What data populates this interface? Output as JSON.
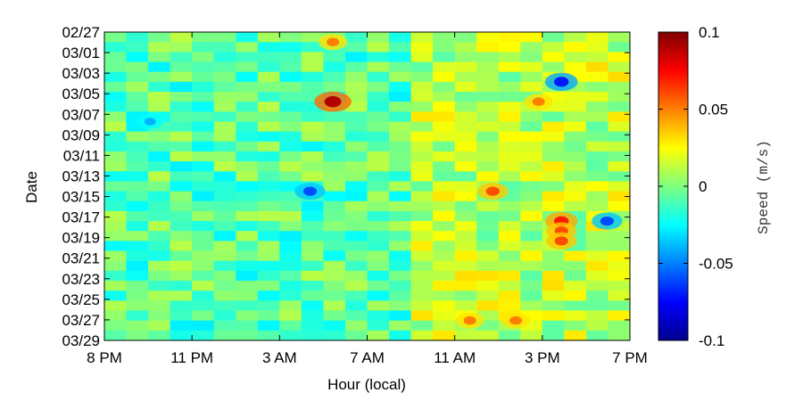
{
  "chart_data": {
    "type": "heatmap",
    "title": "",
    "xlabel": "Hour (local)",
    "ylabel": "Date",
    "x_ticks": [
      "8 PM",
      "11 PM",
      "3 AM",
      "7 AM",
      "11 AM",
      "3 PM",
      "7 PM"
    ],
    "y_ticks": [
      "02/27",
      "03/01",
      "03/03",
      "03/05",
      "03/07",
      "03/09",
      "03/11",
      "03/13",
      "03/15",
      "03/17",
      "03/19",
      "03/21",
      "03/23",
      "03/25",
      "03/27",
      "03/29"
    ],
    "colorbar": {
      "label": "Speed (m/s)",
      "range": [
        -0.1,
        0.1
      ],
      "ticks": [
        "0.1",
        "0.05",
        "0",
        "-0.05",
        "-0.1"
      ],
      "colormap": "jet"
    },
    "grid": false,
    "hotspots": [
      {
        "date": "03/05",
        "hour": "6 AM",
        "value": 0.09
      },
      {
        "date": "02/28",
        "hour": "6 AM",
        "value": 0.05
      },
      {
        "date": "03/17",
        "hour": "4 PM",
        "value": 0.07
      },
      {
        "date": "03/18",
        "hour": "4 PM",
        "value": 0.06
      },
      {
        "date": "03/19",
        "hour": "4 PM",
        "value": 0.06
      },
      {
        "date": "03/05",
        "hour": "3 PM",
        "value": 0.05
      },
      {
        "date": "03/14",
        "hour": "1 PM",
        "value": 0.06
      },
      {
        "date": "03/27",
        "hour": "12 PM",
        "value": 0.05
      },
      {
        "date": "03/27",
        "hour": "2 PM",
        "value": 0.05
      },
      {
        "date": "03/03",
        "hour": "4 PM",
        "value": -0.07
      },
      {
        "date": "03/17",
        "hour": "6 PM",
        "value": -0.06
      },
      {
        "date": "03/14",
        "hour": "5 AM",
        "value": -0.06
      },
      {
        "date": "03/07",
        "hour": "10 PM",
        "value": -0.04
      }
    ]
  }
}
